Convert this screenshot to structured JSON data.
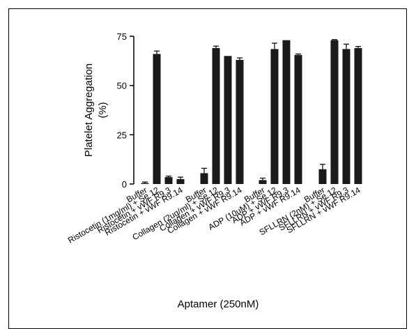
{
  "chart_data": {
    "type": "bar",
    "ylabel": "Platelet Aggregation",
    "ylabel_unit": "(%)",
    "xlabel": "Aptamer (250nM)",
    "ylim": [
      0,
      75
    ],
    "yticks": [
      0,
      25,
      50,
      75
    ],
    "grid": false,
    "categories": [
      "Buffer",
      "Ristocetin (1mg/ml) + Se 12",
      "Ristocetin + vWF R9.3",
      "Ristocetin + vWF R9.14",
      "Buffer",
      "Collagen (2ug/ml) + Se 12",
      "Collagen + vWF R9.3",
      "Collagen + vWF R9.14",
      "Buffer",
      "ADP (10uM) + Se 12",
      "ADP + vWF R9.3",
      "ADP + vWF R9.14",
      "Buffer",
      "SFLLRN (2nM) + Se 12",
      "SFLLRN + vWF R9.3",
      "SFLLRN + vWF R9.14"
    ],
    "values": [
      0.5,
      66,
      3.5,
      2.5,
      5.5,
      69,
      65,
      63,
      2,
      68.5,
      73,
      65.5,
      7.5,
      73,
      68.5,
      69
    ],
    "errors": [
      0.5,
      1.5,
      0.5,
      1,
      2.5,
      1,
      0,
      1,
      1,
      3,
      0,
      0.5,
      2.5,
      0.3,
      2.5,
      0.8
    ]
  }
}
